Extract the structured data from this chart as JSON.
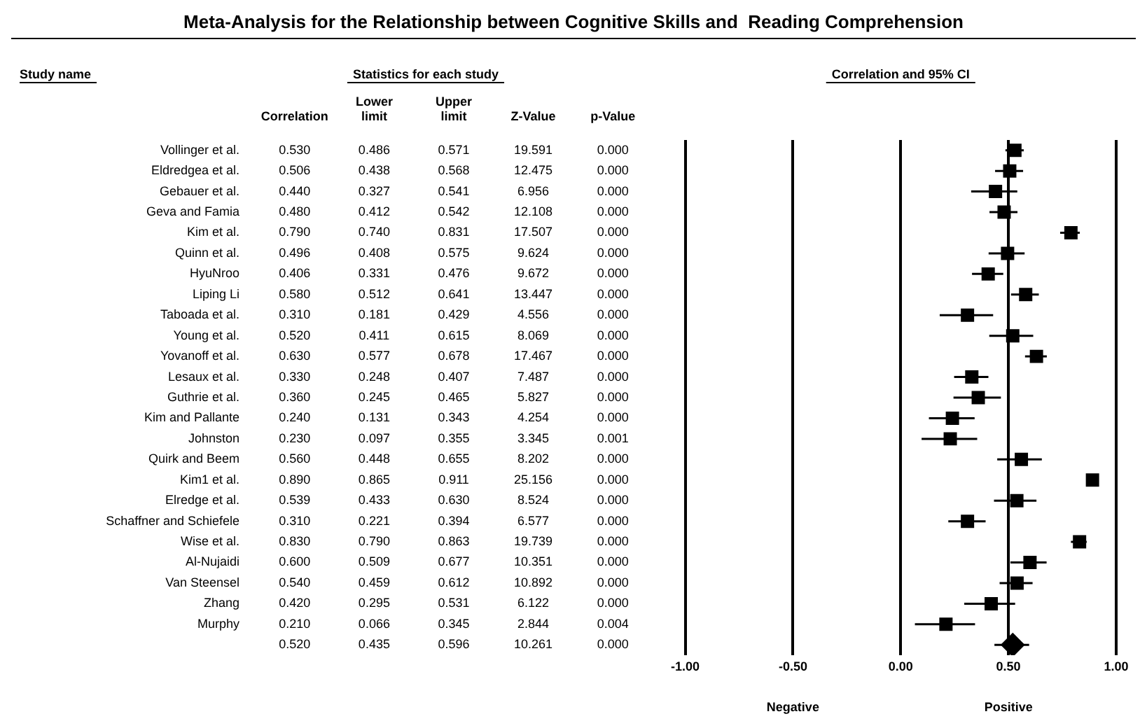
{
  "chart_data": [
    {
      "type": "heatmap",
      "title": "Meta-Analysis for the Relationship between Cognitive Skills and  Reading Comprehension",
      "subtitle": "Statistics for each study",
      "ylabel": "Study name",
      "categories": [
        "Correlation",
        "Lower limit",
        "Upper limit",
        "Z-Value",
        "p-Value"
      ],
      "y_categories": [
        "Vollinger et al.",
        "Eldredgea et al.",
        "Gebauer et al.",
        "Geva and Famia",
        "Kim et al.",
        "Quinn et al.",
        "HyuNroo",
        "Liping Li",
        "Taboada et al.",
        "Young et al.",
        "Yovanoff et al.",
        "Lesaux et al.",
        "Guthrie et al.",
        "Kim and Pallante",
        "Johnston",
        "Quirk and Beem",
        "Kim1 et al.",
        "Elredge et al.",
        "Schaffner and Schiefele",
        "Wise et al.",
        "Al-Nujaidi",
        "Van Steensel",
        "Zhang",
        "Murphy",
        null
      ],
      "cells": [
        [
          0.53,
          0.486,
          0.571,
          19.591,
          0.0
        ],
        [
          0.506,
          0.438,
          0.568,
          12.475,
          0.0
        ],
        [
          0.44,
          0.327,
          0.541,
          6.956,
          0.0
        ],
        [
          0.48,
          0.412,
          0.542,
          12.108,
          0.0
        ],
        [
          0.79,
          0.74,
          0.831,
          17.507,
          0.0
        ],
        [
          0.496,
          0.408,
          0.575,
          9.624,
          0.0
        ],
        [
          0.406,
          0.331,
          0.476,
          9.672,
          0.0
        ],
        [
          0.58,
          0.512,
          0.641,
          13.447,
          0.0
        ],
        [
          0.31,
          0.181,
          0.429,
          4.556,
          0.0
        ],
        [
          0.52,
          0.411,
          0.615,
          8.069,
          0.0
        ],
        [
          0.63,
          0.577,
          0.678,
          17.467,
          0.0
        ],
        [
          0.33,
          0.248,
          0.407,
          7.487,
          0.0
        ],
        [
          0.36,
          0.245,
          0.465,
          5.827,
          0.0
        ],
        [
          0.24,
          0.131,
          0.343,
          4.254,
          0.0
        ],
        [
          0.23,
          0.097,
          0.355,
          3.345,
          0.001
        ],
        [
          0.56,
          0.448,
          0.655,
          8.202,
          0.0
        ],
        [
          0.89,
          0.865,
          0.911,
          25.156,
          0.0
        ],
        [
          0.539,
          0.433,
          0.63,
          8.524,
          0.0
        ],
        [
          0.31,
          0.221,
          0.394,
          6.577,
          0.0
        ],
        [
          0.83,
          0.79,
          0.863,
          19.739,
          0.0
        ],
        [
          0.6,
          0.509,
          0.677,
          10.351,
          0.0
        ],
        [
          0.54,
          0.459,
          0.612,
          10.892,
          0.0
        ],
        [
          0.42,
          0.295,
          0.531,
          6.122,
          0.0
        ],
        [
          0.21,
          0.066,
          0.345,
          2.844,
          0.004
        ],
        [
          0.52,
          0.435,
          0.596,
          10.261,
          0.0
        ]
      ],
      "cell_labels": [
        [
          "0.530",
          "0.486",
          "0.571",
          "19.591",
          "0.000"
        ],
        [
          "0.506",
          "0.438",
          "0.568",
          "12.475",
          "0.000"
        ],
        [
          "0.440",
          "0.327",
          "0.541",
          "6.956",
          "0.000"
        ],
        [
          "0.480",
          "0.412",
          "0.542",
          "12.108",
          "0.000"
        ],
        [
          "0.790",
          "0.740",
          "0.831",
          "17.507",
          "0.000"
        ],
        [
          "0.496",
          "0.408",
          "0.575",
          "9.624",
          "0.000"
        ],
        [
          "0.406",
          "0.331",
          "0.476",
          "9.672",
          "0.000"
        ],
        [
          "0.580",
          "0.512",
          "0.641",
          "13.447",
          "0.000"
        ],
        [
          "0.310",
          "0.181",
          "0.429",
          "4.556",
          "0.000"
        ],
        [
          "0.520",
          "0.411",
          "0.615",
          "8.069",
          "0.000"
        ],
        [
          "0.630",
          "0.577",
          "0.678",
          "17.467",
          "0.000"
        ],
        [
          "0.330",
          "0.248",
          "0.407",
          "7.487",
          "0.000"
        ],
        [
          "0.360",
          "0.245",
          "0.465",
          "5.827",
          "0.000"
        ],
        [
          "0.240",
          "0.131",
          "0.343",
          "4.254",
          "0.000"
        ],
        [
          "0.230",
          "0.097",
          "0.355",
          "3.345",
          "0.001"
        ],
        [
          "0.560",
          "0.448",
          "0.655",
          "8.202",
          "0.000"
        ],
        [
          "0.890",
          "0.865",
          "0.911",
          "25.156",
          "0.000"
        ],
        [
          "0.539",
          "0.433",
          "0.630",
          "8.524",
          "0.000"
        ],
        [
          "0.310",
          "0.221",
          "0.394",
          "6.577",
          "0.000"
        ],
        [
          "0.830",
          "0.790",
          "0.863",
          "19.739",
          "0.000"
        ],
        [
          "0.600",
          "0.509",
          "0.677",
          "10.351",
          "0.000"
        ],
        [
          "0.540",
          "0.459",
          "0.612",
          "10.892",
          "0.000"
        ],
        [
          "0.420",
          "0.295",
          "0.531",
          "6.122",
          "0.000"
        ],
        [
          "0.210",
          "0.066",
          "0.345",
          "2.844",
          "0.004"
        ],
        [
          "0.520",
          "0.435",
          "0.596",
          "10.261",
          "0.000"
        ]
      ]
    },
    {
      "type": "scatter",
      "orientation": "horizontal",
      "title": "Correlation and 95% CI",
      "categories": [
        null,
        null,
        null,
        null,
        null,
        null,
        null,
        null,
        null,
        null,
        null,
        null,
        null,
        null,
        null,
        null,
        null,
        null,
        null,
        null,
        null,
        null,
        null,
        null,
        null
      ],
      "series": [
        {
          "color": "#000000",
          "marker": "square",
          "values": [
            0.53,
            0.506,
            0.44,
            0.48,
            0.79,
            0.496,
            0.406,
            0.58,
            0.31,
            0.52,
            0.63,
            0.33,
            0.36,
            0.24,
            0.23,
            0.56,
            0.89,
            0.539,
            0.31,
            0.83,
            0.6,
            0.54,
            0.42,
            0.21,
            null
          ],
          "errors": [
            [
              0.486,
              0.571
            ],
            [
              0.438,
              0.568
            ],
            [
              0.327,
              0.541
            ],
            [
              0.412,
              0.542
            ],
            [
              0.74,
              0.831
            ],
            [
              0.408,
              0.575
            ],
            [
              0.331,
              0.476
            ],
            [
              0.512,
              0.641
            ],
            [
              0.181,
              0.429
            ],
            [
              0.411,
              0.615
            ],
            [
              0.577,
              0.678
            ],
            [
              0.248,
              0.407
            ],
            [
              0.245,
              0.465
            ],
            [
              0.131,
              0.343
            ],
            [
              0.097,
              0.355
            ],
            [
              0.448,
              0.655
            ],
            [
              0.865,
              0.911
            ],
            [
              0.433,
              0.63
            ],
            [
              0.221,
              0.394
            ],
            [
              0.79,
              0.863
            ],
            [
              0.509,
              0.677
            ],
            [
              0.459,
              0.612
            ],
            [
              0.295,
              0.531
            ],
            [
              0.066,
              0.345
            ],
            null
          ]
        },
        {
          "color": "#000000",
          "marker": "diamond",
          "values": [
            null,
            null,
            null,
            null,
            null,
            null,
            null,
            null,
            null,
            null,
            null,
            null,
            null,
            null,
            null,
            null,
            null,
            null,
            null,
            null,
            null,
            null,
            null,
            null,
            0.52
          ],
          "errors": [
            null,
            null,
            null,
            null,
            null,
            null,
            null,
            null,
            null,
            null,
            null,
            null,
            null,
            null,
            null,
            null,
            null,
            null,
            null,
            null,
            null,
            null,
            null,
            null,
            [
              0.435,
              0.596
            ]
          ]
        }
      ],
      "xlim": [
        -1,
        1
      ],
      "xticks": [
        {
          "value": -1,
          "label": "-1.00"
        },
        {
          "value": -0.5,
          "label": "-0.50"
        },
        {
          "value": 0,
          "label": "0.00"
        },
        {
          "value": 0.5,
          "label": "0.50"
        },
        {
          "value": 1,
          "label": "1.00"
        }
      ],
      "grid": "x",
      "tick_labels": "x",
      "legend": false,
      "annotations": [
        "Negative",
        "Positive"
      ]
    }
  ]
}
